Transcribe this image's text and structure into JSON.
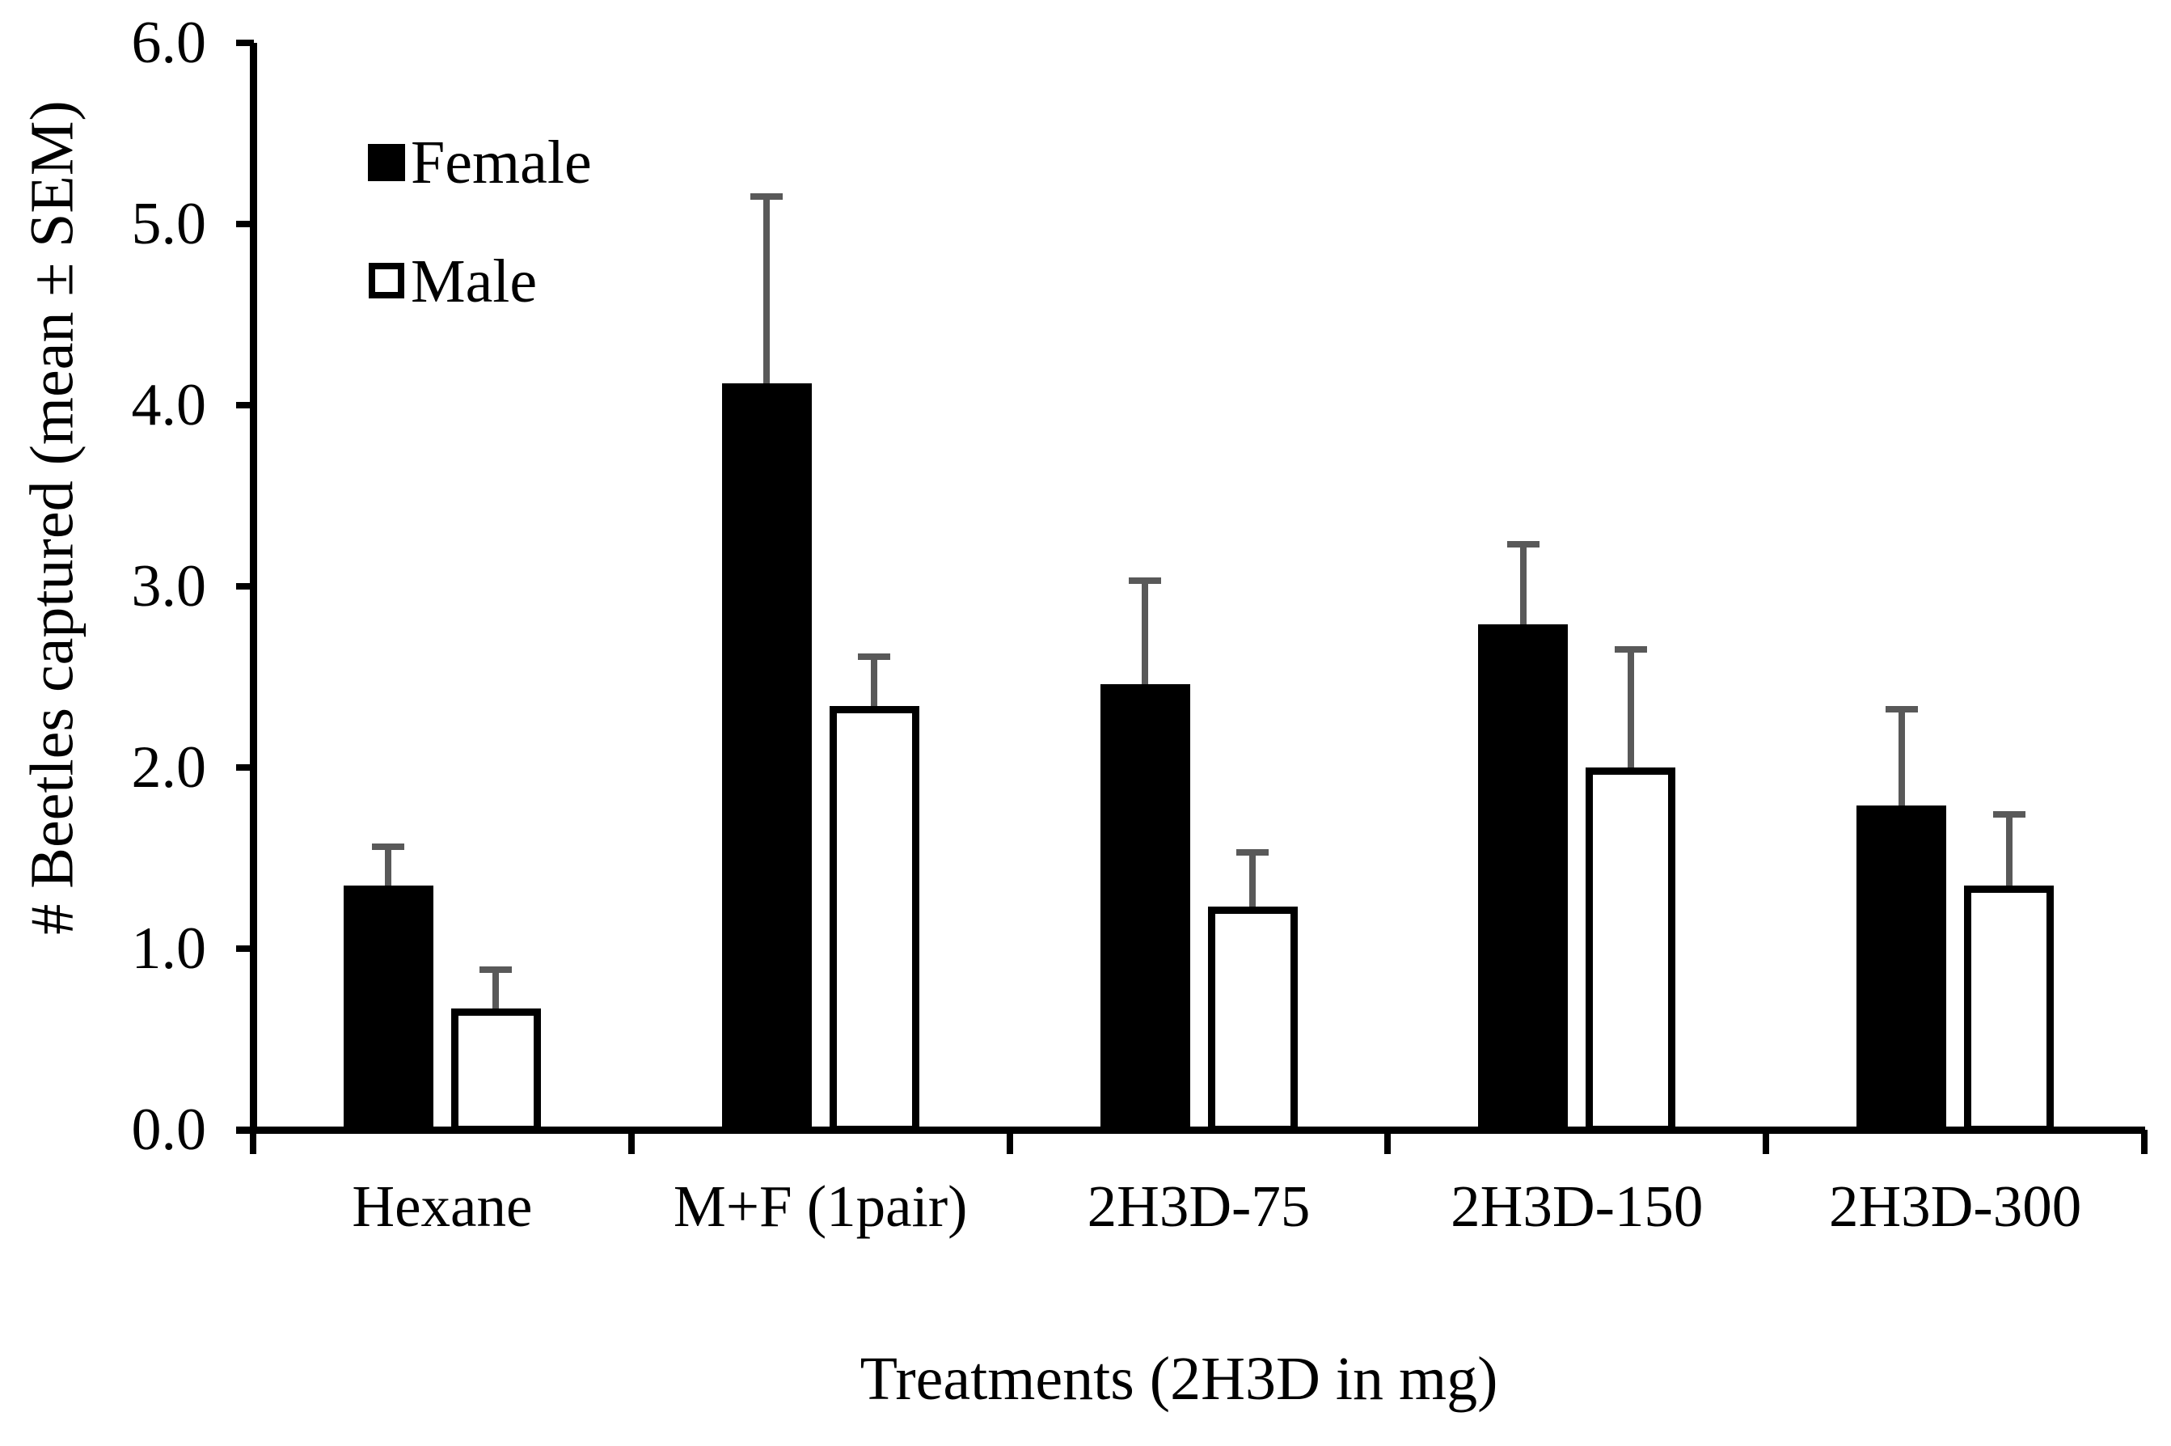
{
  "figure": {
    "background": "#ffffff",
    "axis_color": "#000000"
  },
  "legend": {
    "position": "top-left",
    "items": [
      {
        "label": "Female",
        "swatch": "filled-black-square"
      },
      {
        "label": "Male",
        "swatch": "open-white-square"
      }
    ]
  },
  "chart_data": {
    "type": "bar",
    "title": "",
    "xlabel": "Treatments (2H3D in mg)",
    "ylabel": "# Beetles captured (mean ± SEM)",
    "categories": [
      "Hexane",
      "M+F (1pair)",
      "2H3D-75",
      "2H3D-150",
      "2H3D-300"
    ],
    "series": [
      {
        "name": "Female",
        "fill": "#000000",
        "values": [
          1.35,
          4.12,
          2.46,
          2.79,
          1.79
        ],
        "sem": [
          0.23,
          1.05,
          0.59,
          0.46,
          0.55
        ]
      },
      {
        "name": "Male",
        "fill": "#ffffff",
        "stroke": "#000000",
        "values": [
          0.67,
          2.34,
          1.23,
          2.0,
          1.35
        ],
        "sem": [
          0.23,
          0.29,
          0.32,
          0.67,
          0.41
        ]
      }
    ],
    "error_bars": "+SEM only, gray caps",
    "error_bar_color": "#595959",
    "ylim": [
      0,
      6
    ],
    "ytick_step": 1.0,
    "ytick_labels": [
      "0.0",
      "1.0",
      "2.0",
      "3.0",
      "4.0",
      "5.0",
      "6.0"
    ],
    "grid": false,
    "legend_position": "upper-left-inside"
  }
}
